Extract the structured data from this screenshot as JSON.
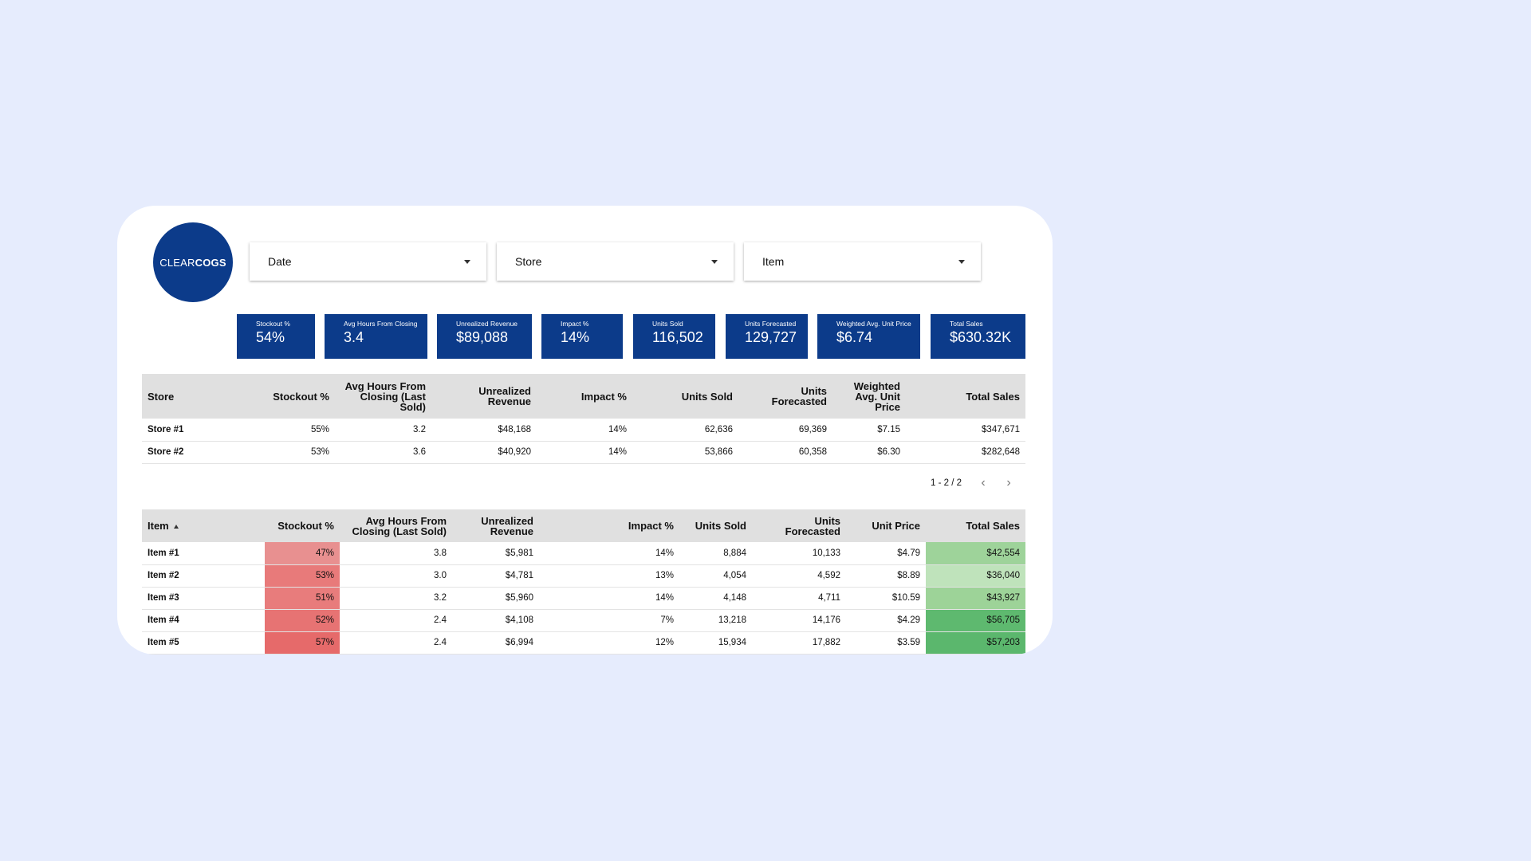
{
  "logo": {
    "clear": "CLEAR",
    "cogs": "COGS"
  },
  "filters": [
    {
      "label": "Date"
    },
    {
      "label": "Store"
    },
    {
      "label": "Item"
    }
  ],
  "kpis": [
    {
      "label": "Stockout %",
      "value": "54%"
    },
    {
      "label": "Avg Hours From Closing",
      "value": "3.4"
    },
    {
      "label": "Unrealized Revenue",
      "value": "$89,088"
    },
    {
      "label": "Impact %",
      "value": "14%"
    },
    {
      "label": "Units Sold",
      "value": "116,502"
    },
    {
      "label": "Units Forecasted",
      "value": "129,727"
    },
    {
      "label": "Weighted Avg. Unit Price",
      "value": "$6.74"
    },
    {
      "label": "Total Sales",
      "value": "$630.32K"
    }
  ],
  "store_table": {
    "headers": [
      "Store",
      "Stockout %",
      "Avg Hours From Closing (Last Sold)",
      "Unrealized Revenue",
      "Impact %",
      "Units Sold",
      "Units Forecasted",
      "Weighted Avg. Unit Price",
      "Total Sales"
    ],
    "rows": [
      [
        "Store #1",
        "55%",
        "3.2",
        "$48,168",
        "14%",
        "62,636",
        "69,369",
        "$7.15",
        "$347,671"
      ],
      [
        "Store #2",
        "53%",
        "3.6",
        "$40,920",
        "14%",
        "53,866",
        "60,358",
        "$6.30",
        "$282,648"
      ]
    ]
  },
  "pagination": {
    "text": "1 - 2 / 2",
    "prev": "‹",
    "next": "›"
  },
  "item_table": {
    "headers": [
      "Item",
      "Stockout %",
      "Avg Hours From Closing (Last Sold)",
      "Unrealized Revenue",
      "Impact %",
      "Units Sold",
      "Units Forecasted",
      "Unit Price",
      "Total Sales"
    ],
    "rows": [
      [
        "Item #1",
        "47%",
        "3.8",
        "$5,981",
        "14%",
        "8,884",
        "10,133",
        "$4.79",
        "$42,554"
      ],
      [
        "Item #2",
        "53%",
        "3.0",
        "$4,781",
        "13%",
        "4,054",
        "4,592",
        "$8.89",
        "$36,040"
      ],
      [
        "Item #3",
        "51%",
        "3.2",
        "$5,960",
        "14%",
        "4,148",
        "4,711",
        "$10.59",
        "$43,927"
      ],
      [
        "Item #4",
        "52%",
        "2.4",
        "$4,108",
        "7%",
        "13,218",
        "14,176",
        "$4.29",
        "$56,705"
      ],
      [
        "Item #5",
        "57%",
        "2.4",
        "$6,994",
        "12%",
        "15,934",
        "17,882",
        "$3.59",
        "$57,203"
      ]
    ],
    "stockout_colors": [
      "#e89090",
      "#e87a7a",
      "#e87c7c",
      "#e77373",
      "#e66a6a"
    ],
    "sales_colors": [
      "#9ed39a",
      "#bfe3bb",
      "#9dd398",
      "#5eb96f",
      "#5bb76d"
    ]
  }
}
